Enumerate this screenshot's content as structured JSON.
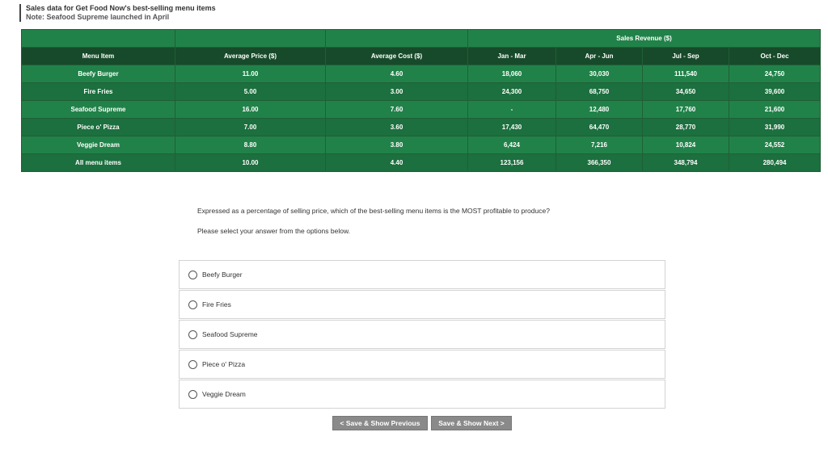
{
  "header": {
    "title": "Sales data for Get Food Now's best-selling menu items",
    "note": "Note: Seafood Supreme launched in April"
  },
  "table": {
    "group_label": "Sales Revenue ($)",
    "headers": [
      "Menu Item",
      "Average Price ($)",
      "Average Cost ($)",
      "Jan - Mar",
      "Apr - Jun",
      "Jul - Sep",
      "Oct - Dec"
    ],
    "rows": [
      [
        "Beefy Burger",
        "11.00",
        "4.60",
        "18,060",
        "30,030",
        "111,540",
        "24,750"
      ],
      [
        "Fire Fries",
        "5.00",
        "3.00",
        "24,300",
        "68,750",
        "34,650",
        "39,600"
      ],
      [
        "Seafood Supreme",
        "16.00",
        "7.60",
        "-",
        "12,480",
        "17,760",
        "21,600"
      ],
      [
        "Piece o' Pizza",
        "7.00",
        "3.60",
        "17,430",
        "64,470",
        "28,770",
        "31,990"
      ],
      [
        "Veggie Dream",
        "8.80",
        "3.80",
        "6,424",
        "7,216",
        "10,824",
        "24,552"
      ],
      [
        "All menu items",
        "10.00",
        "4.40",
        "123,156",
        "366,350",
        "348,794",
        "280,494"
      ]
    ]
  },
  "question": "Expressed as a percentage of selling price, which of the best-selling menu items is the MOST profitable to produce?",
  "instruction": "Please select your answer from the options below.",
  "options": [
    "Beefy Burger",
    "Fire Fries",
    "Seafood Supreme",
    "Piece o' Pizza",
    "Veggie Dream"
  ],
  "buttons": {
    "prev": "< Save & Show Previous",
    "next": "Save & Show Next >"
  }
}
